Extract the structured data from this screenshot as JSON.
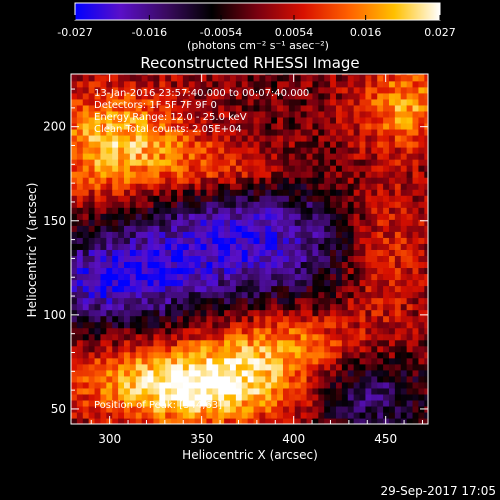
{
  "chart_data": {
    "type": "heatmap",
    "title": "Reconstructed RHESSI Image",
    "xlabel": "Heliocentric X (arcsec)",
    "ylabel": "Heliocentric Y (arcsec)",
    "xlim": [
      279,
      473
    ],
    "ylim": [
      42,
      228
    ],
    "xticks": [
      300,
      350,
      400,
      450
    ],
    "yticks": [
      50,
      100,
      150,
      200
    ],
    "colorbar": {
      "min": -0.027,
      "max": 0.027,
      "ticks": [
        "-0.027",
        "-0.016",
        "-0.0054",
        "0.0054",
        "0.016",
        "0.027"
      ],
      "units_label": "(photons cm⁻² s⁻¹ asec⁻²)",
      "colors": [
        "#0000ff",
        "#5a10c8",
        "#3a0a60",
        "#000000",
        "#7a0010",
        "#d81000",
        "#ff6000",
        "#ffc000",
        "#ffffff"
      ]
    },
    "annotations": [
      "13-Jan-2016 23:57:40.000 to 00:07:40.000",
      "Detectors: 1F 5F 7F 9F 0",
      "Energy Range: 12.0 - 25.0 keV",
      "Clean    Total counts: 2.05E+04",
      "Position of Peak: [344,63]"
    ],
    "footer_date": "29-Sep-2017 17:05",
    "regions": [
      {
        "cx": 345,
        "cy": 63,
        "sx": 42,
        "sy": 15,
        "amp": 0.03
      },
      {
        "cx": 395,
        "cy": 86,
        "sx": 28,
        "sy": 12,
        "amp": 0.014
      },
      {
        "cx": 305,
        "cy": 190,
        "sx": 30,
        "sy": 22,
        "amp": 0.022
      },
      {
        "cx": 365,
        "cy": 178,
        "sx": 25,
        "sy": 10,
        "amp": 0.012
      },
      {
        "cx": 460,
        "cy": 212,
        "sx": 20,
        "sy": 16,
        "amp": 0.018
      },
      {
        "cx": 450,
        "cy": 135,
        "sx": 18,
        "sy": 30,
        "amp": 0.012
      },
      {
        "cx": 370,
        "cy": 140,
        "sx": 45,
        "sy": 22,
        "amp": -0.022
      },
      {
        "cx": 300,
        "cy": 118,
        "sx": 30,
        "sy": 16,
        "amp": -0.02
      },
      {
        "cx": 440,
        "cy": 58,
        "sx": 20,
        "sy": 14,
        "amp": -0.016
      }
    ]
  }
}
